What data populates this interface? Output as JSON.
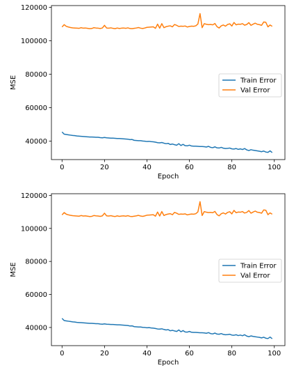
{
  "chart_data": [
    {
      "type": "line",
      "title": "",
      "xlabel": "Epoch",
      "ylabel": "MSE",
      "xlim": [
        -5,
        105
      ],
      "ylim": [
        29000,
        121000
      ],
      "xticks": [
        0,
        20,
        40,
        60,
        80,
        100
      ],
      "yticks": [
        40000,
        60000,
        80000,
        100000,
        120000
      ],
      "grid": false,
      "legend_position": "center-right",
      "series": [
        {
          "name": "Train Error",
          "color": "#1f77b4",
          "x": [
            0,
            1,
            2,
            3,
            4,
            5,
            6,
            7,
            8,
            9,
            10,
            11,
            12,
            13,
            14,
            15,
            16,
            17,
            18,
            19,
            20,
            21,
            22,
            23,
            24,
            25,
            26,
            27,
            28,
            29,
            30,
            31,
            32,
            33,
            34,
            35,
            36,
            37,
            38,
            39,
            40,
            41,
            42,
            43,
            44,
            45,
            46,
            47,
            48,
            49,
            50,
            51,
            52,
            53,
            54,
            55,
            56,
            57,
            58,
            59,
            60,
            61,
            62,
            63,
            64,
            65,
            66,
            67,
            68,
            69,
            70,
            71,
            72,
            73,
            74,
            75,
            76,
            77,
            78,
            79,
            80,
            81,
            82,
            83,
            84,
            85,
            86,
            87,
            88,
            89,
            90,
            91,
            92,
            93,
            94,
            95,
            96,
            97,
            98,
            99
          ],
          "y": [
            45500,
            44200,
            44000,
            43800,
            43600,
            43400,
            43300,
            43100,
            43000,
            42900,
            42800,
            42700,
            42600,
            42500,
            42500,
            42400,
            42300,
            42300,
            42100,
            42000,
            42200,
            42000,
            41900,
            41800,
            41800,
            41700,
            41600,
            41600,
            41500,
            41400,
            41300,
            41200,
            40900,
            41000,
            40500,
            40400,
            40300,
            40300,
            40100,
            40000,
            39800,
            39900,
            39700,
            39600,
            39400,
            39100,
            39000,
            39200,
            38800,
            38500,
            38700,
            38000,
            38300,
            37900,
            37600,
            38500,
            37400,
            38100,
            37300,
            37200,
            37600,
            37100,
            37000,
            37000,
            36900,
            36800,
            36800,
            36700,
            36500,
            36900,
            36300,
            36100,
            36600,
            36000,
            35900,
            36300,
            35800,
            35600,
            35700,
            35900,
            35400,
            35300,
            35600,
            35100,
            35400,
            35000,
            35600,
            34800,
            34400,
            34900,
            34600,
            34400,
            34200,
            34000,
            33700,
            34100,
            33500,
            33300,
            34200,
            33200
          ]
        },
        {
          "name": "Val Error",
          "color": "#ff7f0e",
          "x": [
            0,
            1,
            2,
            3,
            4,
            5,
            6,
            7,
            8,
            9,
            10,
            11,
            12,
            13,
            14,
            15,
            16,
            17,
            18,
            19,
            20,
            21,
            22,
            23,
            24,
            25,
            26,
            27,
            28,
            29,
            30,
            31,
            32,
            33,
            34,
            35,
            36,
            37,
            38,
            39,
            40,
            41,
            42,
            43,
            44,
            45,
            46,
            47,
            48,
            49,
            50,
            51,
            52,
            53,
            54,
            55,
            56,
            57,
            58,
            59,
            60,
            61,
            62,
            63,
            64,
            65,
            66,
            67,
            68,
            69,
            70,
            71,
            72,
            73,
            74,
            75,
            76,
            77,
            78,
            79,
            80,
            81,
            82,
            83,
            84,
            85,
            86,
            87,
            88,
            89,
            90,
            91,
            92,
            93,
            94,
            95,
            96,
            97,
            98,
            99
          ],
          "y": [
            108200,
            109600,
            108600,
            108200,
            107900,
            107700,
            107600,
            107500,
            107400,
            107800,
            107500,
            107600,
            107400,
            107200,
            107300,
            107800,
            107600,
            107500,
            107300,
            107600,
            109200,
            107600,
            107500,
            107700,
            107400,
            107200,
            107600,
            107300,
            107500,
            107600,
            107400,
            107700,
            107300,
            107200,
            107400,
            107600,
            107900,
            107500,
            107300,
            107600,
            108000,
            108100,
            108200,
            108300,
            107400,
            109900,
            107500,
            110200,
            107800,
            108400,
            108700,
            108900,
            108300,
            109700,
            109200,
            108500,
            108700,
            108600,
            108800,
            108200,
            108500,
            108700,
            108600,
            108900,
            110000,
            116200,
            107800,
            110200,
            109800,
            109600,
            109700,
            109500,
            110300,
            108400,
            107600,
            108900,
            109400,
            108700,
            109700,
            110100,
            108800,
            110900,
            109500,
            109900,
            109800,
            110200,
            109300,
            109700,
            110800,
            109200,
            109900,
            110500,
            109800,
            109600,
            109200,
            111200,
            111000,
            108300,
            109400,
            108600
          ]
        }
      ]
    },
    {
      "type": "line",
      "title": "",
      "xlabel": "Epoch",
      "ylabel": "MSE",
      "xlim": [
        -5,
        105
      ],
      "ylim": [
        29000,
        121000
      ],
      "xticks": [
        0,
        20,
        40,
        60,
        80,
        100
      ],
      "yticks": [
        40000,
        60000,
        80000,
        100000,
        120000
      ],
      "grid": false,
      "legend_position": "center-right",
      "series": [
        {
          "name": "Train Error",
          "color": "#1f77b4",
          "x": [
            0,
            1,
            2,
            3,
            4,
            5,
            6,
            7,
            8,
            9,
            10,
            11,
            12,
            13,
            14,
            15,
            16,
            17,
            18,
            19,
            20,
            21,
            22,
            23,
            24,
            25,
            26,
            27,
            28,
            29,
            30,
            31,
            32,
            33,
            34,
            35,
            36,
            37,
            38,
            39,
            40,
            41,
            42,
            43,
            44,
            45,
            46,
            47,
            48,
            49,
            50,
            51,
            52,
            53,
            54,
            55,
            56,
            57,
            58,
            59,
            60,
            61,
            62,
            63,
            64,
            65,
            66,
            67,
            68,
            69,
            70,
            71,
            72,
            73,
            74,
            75,
            76,
            77,
            78,
            79,
            80,
            81,
            82,
            83,
            84,
            85,
            86,
            87,
            88,
            89,
            90,
            91,
            92,
            93,
            94,
            95,
            96,
            97,
            98,
            99
          ],
          "y": [
            45500,
            44200,
            44000,
            43800,
            43600,
            43400,
            43300,
            43100,
            43000,
            42900,
            42800,
            42700,
            42600,
            42500,
            42500,
            42400,
            42300,
            42300,
            42100,
            42000,
            42200,
            42000,
            41900,
            41800,
            41800,
            41700,
            41600,
            41600,
            41500,
            41400,
            41300,
            41200,
            40900,
            41000,
            40500,
            40400,
            40300,
            40300,
            40100,
            40000,
            39800,
            39900,
            39700,
            39600,
            39400,
            39100,
            39000,
            39200,
            38800,
            38500,
            38700,
            38000,
            38300,
            37900,
            37600,
            38500,
            37400,
            38100,
            37300,
            37200,
            37600,
            37100,
            37000,
            37000,
            36900,
            36800,
            36800,
            36700,
            36500,
            36900,
            36300,
            36100,
            36600,
            36000,
            35900,
            36300,
            35800,
            35600,
            35700,
            35900,
            35400,
            35300,
            35600,
            35100,
            35400,
            35000,
            35600,
            34800,
            34400,
            34900,
            34600,
            34400,
            34200,
            34000,
            33700,
            34100,
            33500,
            33300,
            34200,
            33200
          ]
        },
        {
          "name": "Val Error",
          "color": "#ff7f0e",
          "x": [
            0,
            1,
            2,
            3,
            4,
            5,
            6,
            7,
            8,
            9,
            10,
            11,
            12,
            13,
            14,
            15,
            16,
            17,
            18,
            19,
            20,
            21,
            22,
            23,
            24,
            25,
            26,
            27,
            28,
            29,
            30,
            31,
            32,
            33,
            34,
            35,
            36,
            37,
            38,
            39,
            40,
            41,
            42,
            43,
            44,
            45,
            46,
            47,
            48,
            49,
            50,
            51,
            52,
            53,
            54,
            55,
            56,
            57,
            58,
            59,
            60,
            61,
            62,
            63,
            64,
            65,
            66,
            67,
            68,
            69,
            70,
            71,
            72,
            73,
            74,
            75,
            76,
            77,
            78,
            79,
            80,
            81,
            82,
            83,
            84,
            85,
            86,
            87,
            88,
            89,
            90,
            91,
            92,
            93,
            94,
            95,
            96,
            97,
            98,
            99
          ],
          "y": [
            108200,
            109600,
            108600,
            108200,
            107900,
            107700,
            107600,
            107500,
            107400,
            107800,
            107500,
            107600,
            107400,
            107200,
            107300,
            107800,
            107600,
            107500,
            107300,
            107600,
            109200,
            107600,
            107500,
            107700,
            107400,
            107200,
            107600,
            107300,
            107500,
            107600,
            107400,
            107700,
            107300,
            107200,
            107400,
            107600,
            107900,
            107500,
            107300,
            107600,
            108000,
            108100,
            108200,
            108300,
            107400,
            109900,
            107500,
            110200,
            107800,
            108400,
            108700,
            108900,
            108300,
            109700,
            109200,
            108500,
            108700,
            108600,
            108800,
            108200,
            108500,
            108700,
            108600,
            108900,
            110000,
            116200,
            107800,
            110200,
            109800,
            109600,
            109700,
            109500,
            110300,
            108400,
            107600,
            108900,
            109400,
            108700,
            109700,
            110100,
            108800,
            110900,
            109500,
            109900,
            109800,
            110200,
            109300,
            109700,
            110800,
            109200,
            109900,
            110500,
            109800,
            109600,
            109200,
            111200,
            111000,
            108300,
            109400,
            108600
          ]
        }
      ]
    }
  ]
}
